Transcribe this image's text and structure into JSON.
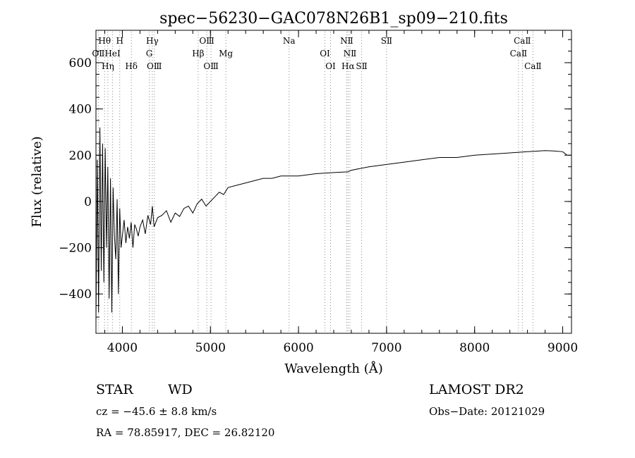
{
  "chart_data": {
    "type": "line",
    "title": "spec−56230−GAC078N26B1_sp09−210.fits",
    "xlabel": "Wavelength (Å)",
    "ylabel": "Flux (relative)",
    "xlim": [
      3700,
      9100
    ],
    "ylim": [
      -570,
      740
    ],
    "x_ticks": [
      4000,
      5000,
      6000,
      7000,
      8000,
      9000
    ],
    "x_tick_labels": [
      "4000",
      "5000",
      "6000",
      "7000",
      "8000",
      "9000"
    ],
    "y_ticks": [
      -400,
      -200,
      0,
      200,
      400,
      600
    ],
    "y_tick_labels": [
      "−400",
      "−200",
      "0",
      "200",
      "400",
      "600"
    ],
    "grid": false,
    "series": [
      {
        "color": "#000000",
        "x": [
          3700,
          3715,
          3730,
          3745,
          3760,
          3775,
          3790,
          3805,
          3820,
          3835,
          3850,
          3865,
          3880,
          3895,
          3910,
          3925,
          3940,
          3955,
          3970,
          3985,
          4000,
          4020,
          4040,
          4060,
          4080,
          4100,
          4120,
          4140,
          4160,
          4180,
          4200,
          4230,
          4260,
          4290,
          4320,
          4340,
          4360,
          4400,
          4450,
          4500,
          4550,
          4600,
          4650,
          4700,
          4750,
          4800,
          4850,
          4900,
          4950,
          5000,
          5050,
          5100,
          5150,
          5200,
          5300,
          5400,
          5500,
          5600,
          5700,
          5800,
          5900,
          6000,
          6200,
          6400,
          6560,
          6600,
          6800,
          7000,
          7200,
          7400,
          7600,
          7800,
          8000,
          8200,
          8400,
          8600,
          8800,
          8900,
          9000,
          9050
        ],
        "values": [
          -520,
          180,
          -480,
          320,
          -300,
          250,
          -350,
          230,
          -200,
          150,
          -420,
          100,
          -480,
          60,
          -150,
          -250,
          10,
          -400,
          -30,
          -200,
          -150,
          -80,
          -180,
          -110,
          -160,
          -90,
          -200,
          -100,
          -120,
          -150,
          -110,
          -80,
          -140,
          -60,
          -100,
          -20,
          -110,
          -70,
          -60,
          -40,
          -90,
          -50,
          -65,
          -30,
          -20,
          -50,
          -10,
          10,
          -20,
          0,
          20,
          40,
          30,
          60,
          70,
          80,
          90,
          100,
          100,
          110,
          110,
          110,
          120,
          125,
          128,
          135,
          150,
          160,
          170,
          180,
          190,
          190,
          200,
          205,
          210,
          215,
          220,
          218,
          215,
          200
        ]
      }
    ],
    "spectral_lines": [
      {
        "label": "OⅡ",
        "wavelength": 3727,
        "row": 2
      },
      {
        "label": "Hθ",
        "wavelength": 3798,
        "row": 1
      },
      {
        "label": "Hη",
        "wavelength": 3835,
        "row": 3
      },
      {
        "label": "HeⅠ",
        "wavelength": 3889,
        "row": 2
      },
      {
        "label": "H",
        "wavelength": 3970,
        "row": 1
      },
      {
        "label": "Hδ",
        "wavelength": 4102,
        "row": 3
      },
      {
        "label": "Hγ",
        "wavelength": 4340,
        "row": 1
      },
      {
        "label": "G",
        "wavelength": 4305,
        "row": 2
      },
      {
        "label": "OⅢ",
        "wavelength": 4363,
        "row": 3
      },
      {
        "label": "OⅢ",
        "wavelength": 4959,
        "row": 1
      },
      {
        "label": "Hβ",
        "wavelength": 4861,
        "row": 2
      },
      {
        "label": "OⅢ",
        "wavelength": 5007,
        "row": 3
      },
      {
        "label": "Mg",
        "wavelength": 5175,
        "row": 2
      },
      {
        "label": "Na",
        "wavelength": 5893,
        "row": 1
      },
      {
        "label": "OⅠ",
        "wavelength": 6300,
        "row": 2
      },
      {
        "label": "OⅠ",
        "wavelength": 6364,
        "row": 3
      },
      {
        "label": "NⅡ",
        "wavelength": 6548,
        "row": 1
      },
      {
        "label": "NⅡ",
        "wavelength": 6584,
        "row": 2
      },
      {
        "label": "Hα",
        "wavelength": 6563,
        "row": 3
      },
      {
        "label": "SⅡ",
        "wavelength": 6717,
        "row": 3
      },
      {
        "label": "SⅡ",
        "wavelength": 7000,
        "row": 1
      },
      {
        "label": "CaⅡ",
        "wavelength": 8498,
        "row": 2
      },
      {
        "label": "CaⅡ",
        "wavelength": 8542,
        "row": 1
      },
      {
        "label": "CaⅡ",
        "wavelength": 8662,
        "row": 3
      }
    ],
    "line_color": "#888888"
  },
  "info": {
    "class_label": "STAR",
    "subclass": "WD",
    "survey": "LAMOST DR2",
    "cz": "cz = −45.6 ± 8.8 km/s",
    "obs_date": "Obs−Date: 20121029",
    "radec": "RA =  78.85917, DEC =  26.82120"
  }
}
